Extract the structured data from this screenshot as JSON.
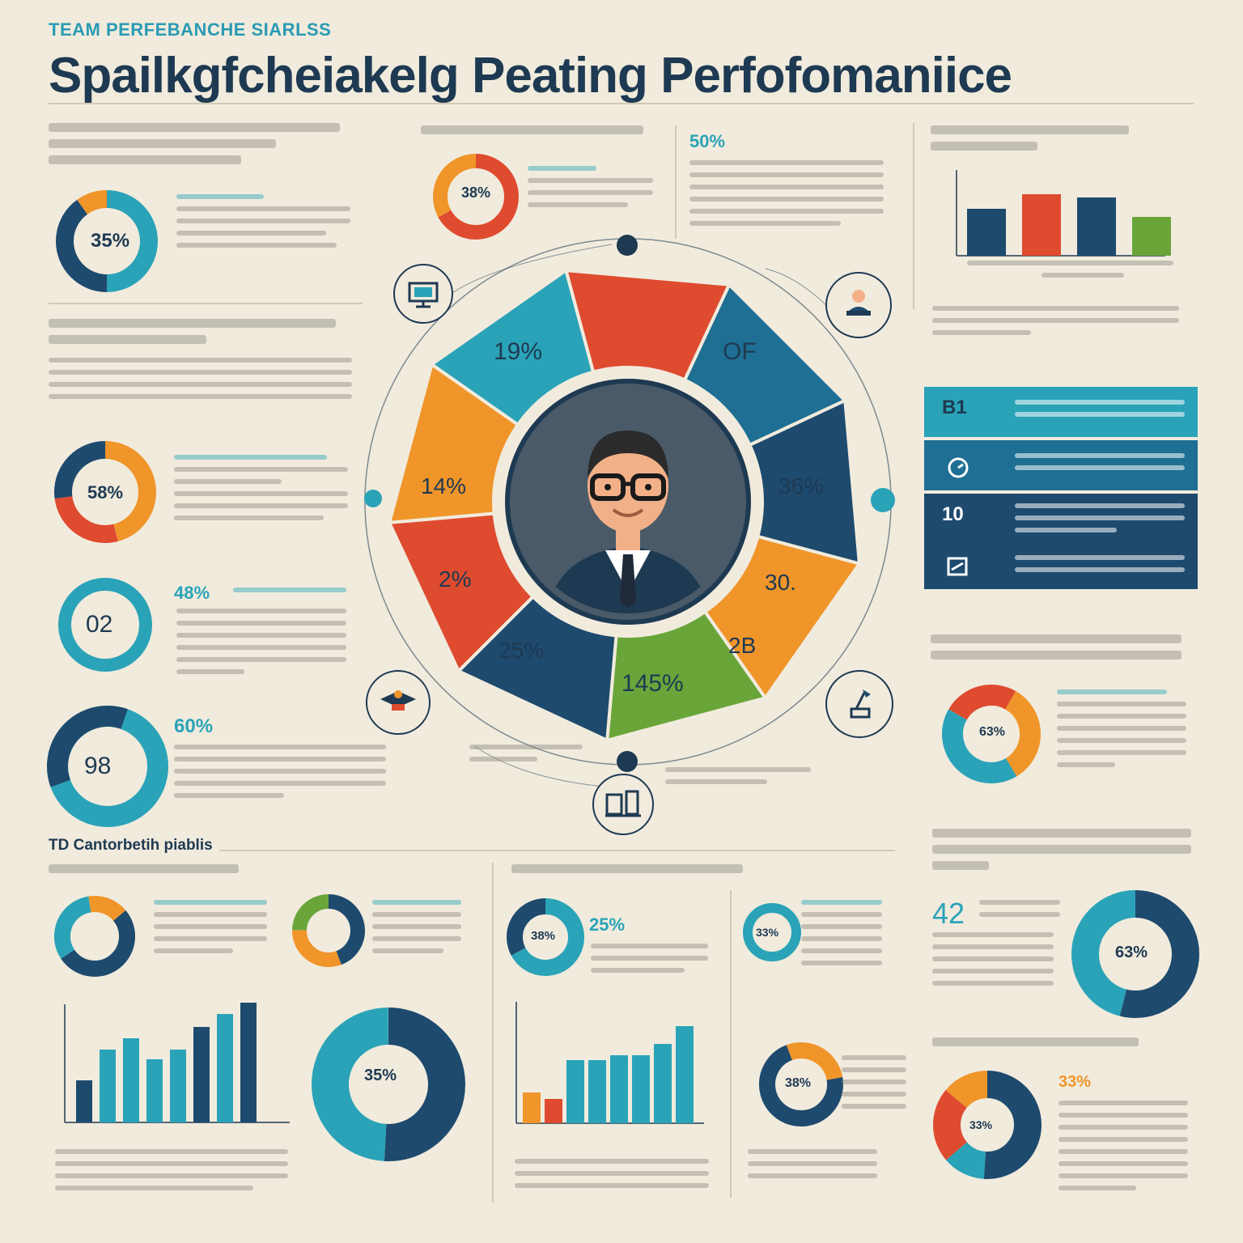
{
  "header": {
    "kicker": "TEAM PERFEBANCHE SIARLSS",
    "title": "Spailkgfcheiakelg Peating Perfofomaniice"
  },
  "colors": {
    "navy": "#1e4a6e",
    "teal": "#2aa3b8",
    "orange": "#f0952a",
    "red": "#de4b2f",
    "green": "#6aa53a",
    "cream": "#f1ebdd",
    "ink": "#1e3a52"
  },
  "icons": [
    "monitor-icon",
    "laptop-user-icon",
    "graduation-cap-icon",
    "desk-lamp-icon",
    "tablet-icon",
    "business-person-avatar",
    "trophy-icon",
    "stopwatch-icon",
    "chart-icon"
  ],
  "center_wheel": {
    "segments": [
      {
        "label": "19%"
      },
      {
        "label": "OF"
      },
      {
        "label": "36%"
      },
      {
        "label": "30."
      },
      {
        "label": "2B"
      },
      {
        "label": "145%"
      },
      {
        "label": "25%"
      },
      {
        "label": "2%"
      },
      {
        "label": "14%"
      }
    ]
  },
  "left_column": {
    "donut1_label": "35%",
    "donut2_label": "58%",
    "donut3_label": "02",
    "stat3": "48%",
    "donut4_label": "98",
    "stat4": "60%"
  },
  "top_middle": {
    "donut_label": "38%",
    "stat": "50%"
  },
  "right_column": {
    "panels": [
      {
        "label": "B1"
      },
      {
        "label": ""
      },
      {
        "label": "10"
      },
      {
        "label": ""
      }
    ],
    "donut_label": "63%"
  },
  "bottom": {
    "section_title": "TD Cantorbetih piablis",
    "donut_a": "35%",
    "stat_a": "25%",
    "stat_b": "42",
    "donut_c": "38%",
    "donut_d": "33%",
    "donut_e": "38%",
    "stat_e": "33%"
  }
}
